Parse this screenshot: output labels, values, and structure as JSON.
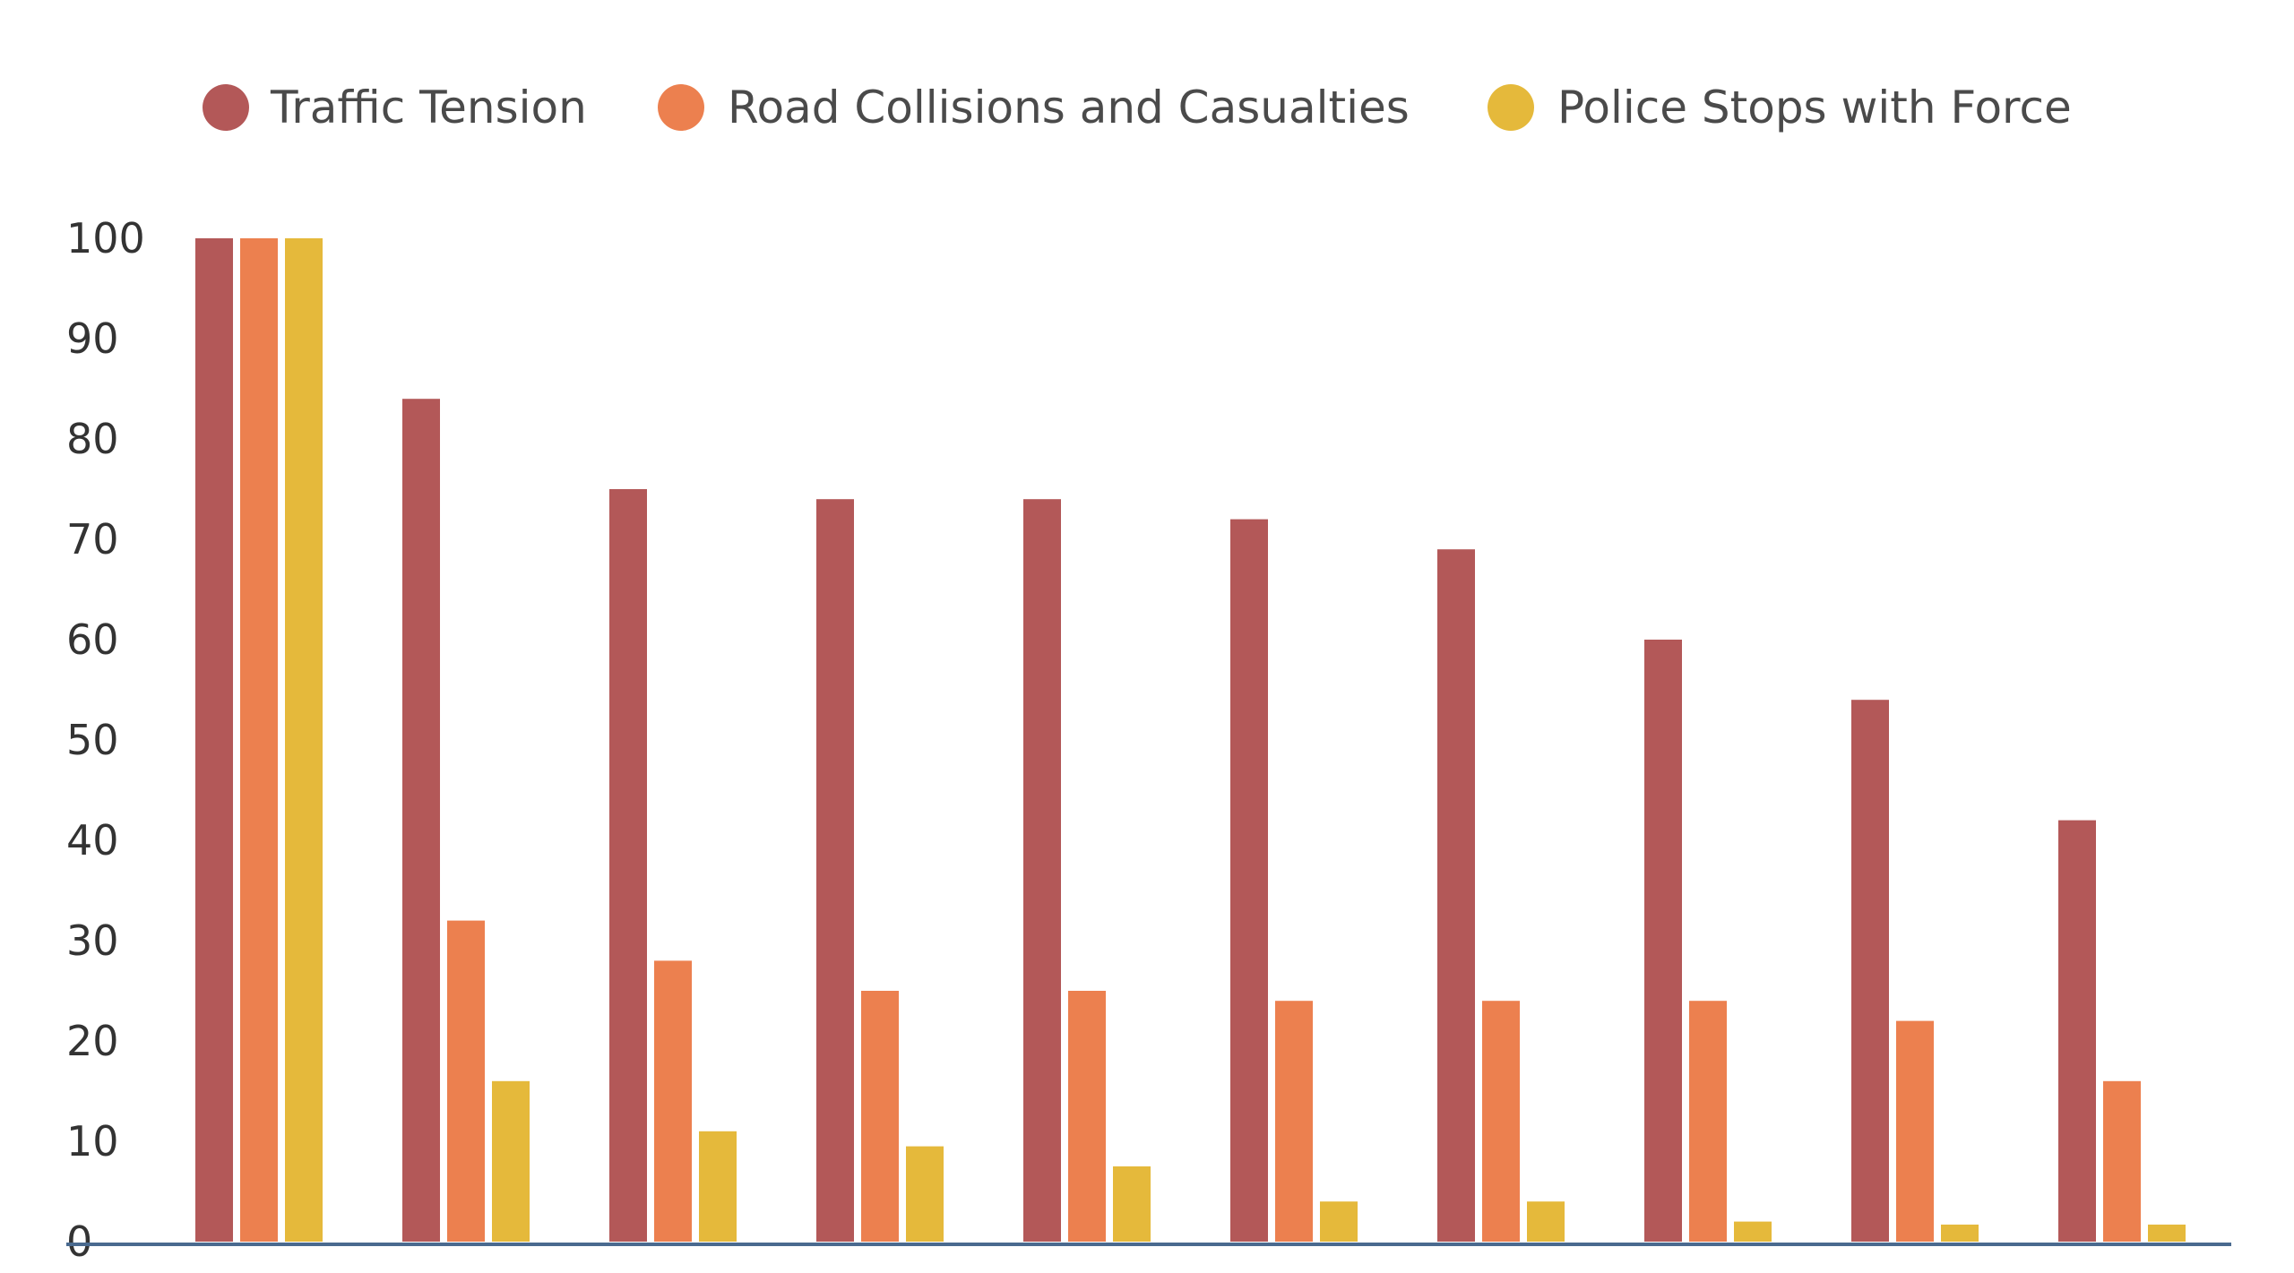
{
  "chart_data": {
    "type": "bar",
    "title": "",
    "xlabel": "",
    "ylabel": "",
    "categories": [
      "",
      "",
      "",
      "",
      "",
      "",
      "",
      "",
      "",
      ""
    ],
    "ylim": [
      0,
      100
    ],
    "yticks": [
      0,
      10,
      20,
      30,
      40,
      50,
      60,
      70,
      80,
      90,
      100
    ],
    "grid": false,
    "legend_position": "top-center",
    "series": [
      {
        "name": "Traffic Tension",
        "color": "#b35858",
        "values": [
          100,
          84,
          75,
          74,
          74,
          72,
          69,
          60,
          54,
          42
        ]
      },
      {
        "name": "Road Collisions and Casualties",
        "color": "#ec804f",
        "values": [
          100,
          32,
          28,
          25,
          25,
          24,
          24,
          24,
          22,
          16
        ]
      },
      {
        "name": "Police Stops with Force",
        "color": "#e5b93b",
        "values": [
          100,
          16,
          11,
          9.5,
          7.5,
          4,
          4,
          2,
          1.7,
          1.7
        ]
      }
    ]
  }
}
